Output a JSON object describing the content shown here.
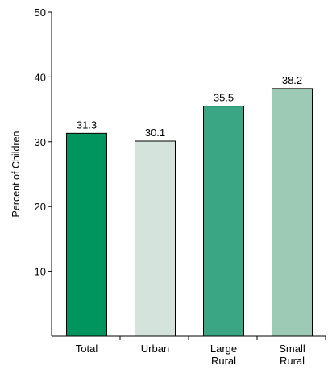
{
  "chart_data": {
    "type": "bar",
    "categories": [
      [
        "Total"
      ],
      [
        "Urban"
      ],
      [
        "Large",
        "Rural"
      ],
      [
        "Small",
        "Rural"
      ]
    ],
    "values": [
      31.3,
      30.1,
      35.5,
      38.2
    ],
    "value_labels": [
      "31.3",
      "30.1",
      "35.5",
      "38.2"
    ],
    "bar_colors": [
      "#00955e",
      "#d4e4dc",
      "#3aa683",
      "#9ccab5"
    ],
    "ylabel": "Percent of Children",
    "xlabel": "",
    "ylim": [
      0,
      50
    ],
    "yticks": [
      10,
      20,
      30,
      40,
      50
    ],
    "ytick_labels": [
      "10",
      "20",
      "30",
      "40",
      "50"
    ],
    "grid": false,
    "legend": "none"
  }
}
